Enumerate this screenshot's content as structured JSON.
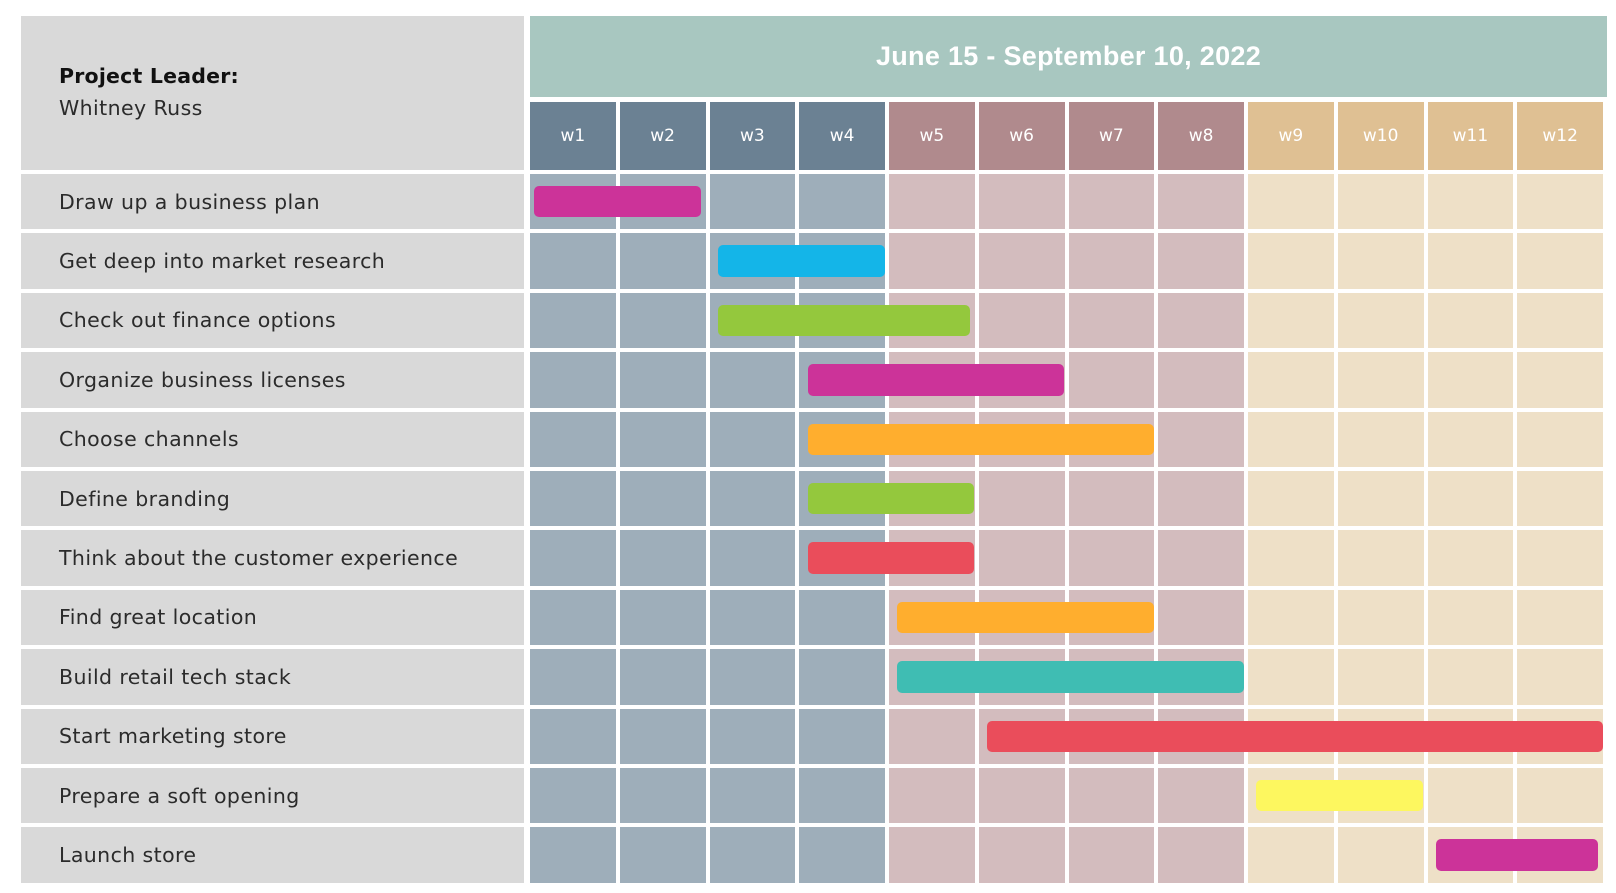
{
  "project": {
    "leader_label": "Project Leader:",
    "leader_name": "Whitney Russ",
    "date_range": "June 15 - September 10, 2022"
  },
  "weeks": [
    "w1",
    "w2",
    "w3",
    "w4",
    "w5",
    "w6",
    "w7",
    "w8",
    "w9",
    "w10",
    "w11",
    "w12"
  ],
  "colors": {
    "banner": "#a8c7c0",
    "label_bg": "#d9d9d9",
    "phase_head": [
      "#6b8193",
      "#b08a8d",
      "#dfc093"
    ],
    "phase_cell": [
      "#9eaeba",
      "#d3bcbe",
      "#eee0c7"
    ],
    "magenta": "#cc3399",
    "blue": "#14b5e8",
    "green": "#94c83d",
    "orange": "#ffae2e",
    "red": "#ea4d5b",
    "teal": "#3fbdb3",
    "yellow": "#fdf75f"
  },
  "chart_data": {
    "type": "gantt",
    "x_unit": "week",
    "tasks": [
      {
        "name": "Draw up a business plan",
        "start": 1.0,
        "end": 2.9,
        "color": "magenta"
      },
      {
        "name": "Get deep into market research",
        "start": 3.05,
        "end": 4.95,
        "color": "blue"
      },
      {
        "name": "Check out finance options",
        "start": 3.05,
        "end": 5.9,
        "color": "green"
      },
      {
        "name": "Organize business licenses",
        "start": 4.05,
        "end": 6.95,
        "color": "magenta"
      },
      {
        "name": "Choose channels",
        "start": 4.05,
        "end": 7.95,
        "color": "orange"
      },
      {
        "name": "Define branding",
        "start": 4.05,
        "end": 5.95,
        "color": "green"
      },
      {
        "name": "Think about the customer experience",
        "start": 4.05,
        "end": 5.95,
        "color": "red"
      },
      {
        "name": "Find great location",
        "start": 5.05,
        "end": 7.95,
        "color": "orange"
      },
      {
        "name": "Build retail tech stack",
        "start": 5.05,
        "end": 8.95,
        "color": "teal"
      },
      {
        "name": "Start marketing store",
        "start": 6.05,
        "end": 12.95,
        "color": "red"
      },
      {
        "name": "Prepare a soft opening",
        "start": 9.05,
        "end": 10.95,
        "color": "yellow"
      },
      {
        "name": "Launch store",
        "start": 11.05,
        "end": 12.9,
        "color": "magenta"
      }
    ]
  }
}
